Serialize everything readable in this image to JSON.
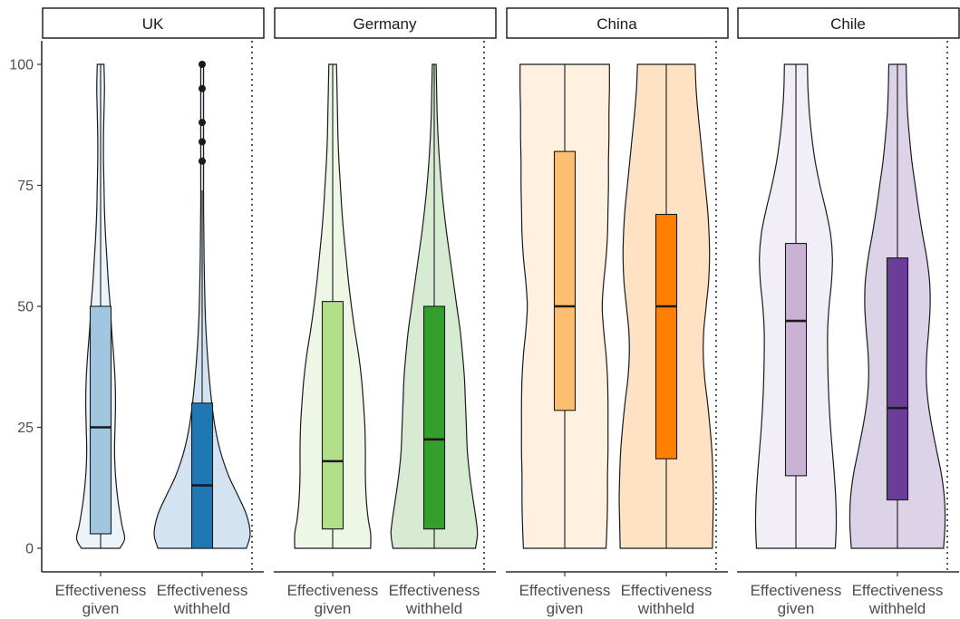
{
  "chart_data": {
    "type": "violin",
    "ylim": [
      0,
      100
    ],
    "yticks": [
      0,
      25,
      50,
      75,
      100
    ],
    "categories": [
      [
        "Effectiveness",
        "given"
      ],
      [
        "Effectiveness",
        "withheld"
      ]
    ],
    "panels": [
      {
        "name": "UK",
        "violins": [
          {
            "fill": "#ecf3f9",
            "box_fill": "#a1c6e0",
            "q1": 3,
            "median": 25,
            "q3": 50,
            "whisker_low": 0,
            "whisker_high": 100,
            "outliers": [],
            "profile": [
              [
                0,
                0.4
              ],
              [
                2,
                0.5
              ],
              [
                5,
                0.44
              ],
              [
                10,
                0.36
              ],
              [
                15,
                0.31
              ],
              [
                20,
                0.29
              ],
              [
                25,
                0.3
              ],
              [
                30,
                0.31
              ],
              [
                35,
                0.3
              ],
              [
                40,
                0.27
              ],
              [
                45,
                0.23
              ],
              [
                50,
                0.2
              ],
              [
                55,
                0.16
              ],
              [
                60,
                0.13
              ],
              [
                65,
                0.1
              ],
              [
                70,
                0.08
              ],
              [
                75,
                0.07
              ],
              [
                80,
                0.06
              ],
              [
                85,
                0.06
              ],
              [
                90,
                0.07
              ],
              [
                95,
                0.08
              ],
              [
                100,
                0.07
              ]
            ]
          },
          {
            "fill": "#d3e3f1",
            "box_fill": "#1f78b4",
            "q1": 0,
            "median": 13,
            "q3": 30,
            "whisker_low": 0,
            "whisker_high": 74,
            "outliers": [
              80,
              84,
              88,
              95,
              100
            ],
            "profile": [
              [
                0,
                0.92
              ],
              [
                3,
                1.0
              ],
              [
                7,
                0.92
              ],
              [
                11,
                0.74
              ],
              [
                15,
                0.55
              ],
              [
                20,
                0.38
              ],
              [
                25,
                0.27
              ],
              [
                30,
                0.2
              ],
              [
                35,
                0.15
              ],
              [
                40,
                0.11
              ],
              [
                45,
                0.08
              ],
              [
                50,
                0.06
              ],
              [
                60,
                0.04
              ],
              [
                70,
                0.03
              ],
              [
                80,
                0.03
              ],
              [
                90,
                0.03
              ],
              [
                100,
                0.03
              ]
            ]
          }
        ]
      },
      {
        "name": "Germany",
        "violins": [
          {
            "fill": "#eef7e6",
            "box_fill": "#b2df8a",
            "q1": 4,
            "median": 18,
            "q3": 51,
            "whisker_low": 0,
            "whisker_high": 100,
            "outliers": [],
            "profile": [
              [
                0,
                0.79
              ],
              [
                3,
                0.79
              ],
              [
                6,
                0.74
              ],
              [
                10,
                0.7
              ],
              [
                15,
                0.68
              ],
              [
                20,
                0.68
              ],
              [
                25,
                0.67
              ],
              [
                30,
                0.64
              ],
              [
                35,
                0.6
              ],
              [
                40,
                0.54
              ],
              [
                45,
                0.46
              ],
              [
                50,
                0.39
              ],
              [
                55,
                0.33
              ],
              [
                60,
                0.28
              ],
              [
                65,
                0.23
              ],
              [
                70,
                0.19
              ],
              [
                75,
                0.16
              ],
              [
                80,
                0.13
              ],
              [
                85,
                0.11
              ],
              [
                90,
                0.1
              ],
              [
                95,
                0.09
              ],
              [
                100,
                0.08
              ]
            ]
          },
          {
            "fill": "#d6ebd2",
            "box_fill": "#33a02c",
            "q1": 4,
            "median": 22.5,
            "q3": 50,
            "whisker_low": 0,
            "whisker_high": 100,
            "outliers": [],
            "profile": [
              [
                0,
                0.86
              ],
              [
                3,
                0.9
              ],
              [
                6,
                0.87
              ],
              [
                10,
                0.81
              ],
              [
                15,
                0.74
              ],
              [
                20,
                0.69
              ],
              [
                25,
                0.67
              ],
              [
                30,
                0.65
              ],
              [
                35,
                0.63
              ],
              [
                40,
                0.59
              ],
              [
                45,
                0.54
              ],
              [
                50,
                0.47
              ],
              [
                55,
                0.4
              ],
              [
                60,
                0.33
              ],
              [
                65,
                0.26
              ],
              [
                70,
                0.2
              ],
              [
                75,
                0.15
              ],
              [
                80,
                0.11
              ],
              [
                85,
                0.08
              ],
              [
                90,
                0.06
              ],
              [
                95,
                0.05
              ],
              [
                100,
                0.04
              ]
            ]
          }
        ]
      },
      {
        "name": "China",
        "violins": [
          {
            "fill": "#fff0e0",
            "box_fill": "#fdbf6f",
            "q1": 28.5,
            "median": 50,
            "q3": 82,
            "whisker_low": 0,
            "whisker_high": 100,
            "outliers": [],
            "profile": [
              [
                0,
                0.86
              ],
              [
                5,
                0.88
              ],
              [
                10,
                0.89
              ],
              [
                15,
                0.89
              ],
              [
                20,
                0.9
              ],
              [
                25,
                0.9
              ],
              [
                30,
                0.9
              ],
              [
                35,
                0.89
              ],
              [
                40,
                0.86
              ],
              [
                45,
                0.81
              ],
              [
                50,
                0.78
              ],
              [
                55,
                0.81
              ],
              [
                60,
                0.86
              ],
              [
                65,
                0.89
              ],
              [
                70,
                0.9
              ],
              [
                75,
                0.91
              ],
              [
                80,
                0.91
              ],
              [
                85,
                0.92
              ],
              [
                90,
                0.92
              ],
              [
                95,
                0.93
              ],
              [
                100,
                0.93
              ]
            ]
          },
          {
            "fill": "#ffe2c4",
            "box_fill": "#ff7f00",
            "q1": 18.5,
            "median": 50,
            "q3": 69,
            "whisker_low": 0,
            "whisker_high": 100,
            "outliers": [],
            "profile": [
              [
                0,
                0.96
              ],
              [
                5,
                0.97
              ],
              [
                10,
                0.98
              ],
              [
                15,
                0.97
              ],
              [
                20,
                0.95
              ],
              [
                25,
                0.91
              ],
              [
                30,
                0.86
              ],
              [
                35,
                0.8
              ],
              [
                40,
                0.77
              ],
              [
                45,
                0.78
              ],
              [
                50,
                0.83
              ],
              [
                55,
                0.88
              ],
              [
                60,
                0.9
              ],
              [
                65,
                0.89
              ],
              [
                70,
                0.86
              ],
              [
                75,
                0.81
              ],
              [
                80,
                0.76
              ],
              [
                85,
                0.71
              ],
              [
                90,
                0.66
              ],
              [
                95,
                0.62
              ],
              [
                100,
                0.6
              ]
            ]
          }
        ]
      },
      {
        "name": "Chile",
        "violins": [
          {
            "fill": "#f2eef7",
            "box_fill": "#cab2d6",
            "q1": 15,
            "median": 47,
            "q3": 63,
            "whisker_low": 0,
            "whisker_high": 100,
            "outliers": [],
            "profile": [
              [
                0,
                0.82
              ],
              [
                5,
                0.84
              ],
              [
                10,
                0.83
              ],
              [
                15,
                0.8
              ],
              [
                20,
                0.76
              ],
              [
                25,
                0.72
              ],
              [
                30,
                0.69
              ],
              [
                35,
                0.67
              ],
              [
                40,
                0.66
              ],
              [
                45,
                0.66
              ],
              [
                50,
                0.69
              ],
              [
                55,
                0.74
              ],
              [
                60,
                0.76
              ],
              [
                65,
                0.72
              ],
              [
                70,
                0.62
              ],
              [
                75,
                0.5
              ],
              [
                80,
                0.4
              ],
              [
                85,
                0.33
              ],
              [
                90,
                0.28
              ],
              [
                95,
                0.25
              ],
              [
                100,
                0.24
              ]
            ]
          },
          {
            "fill": "#ddd3e8",
            "box_fill": "#6a3d9a",
            "q1": 10,
            "median": 29,
            "q3": 60,
            "whisker_low": 0,
            "whisker_high": 100,
            "outliers": [],
            "profile": [
              [
                0,
                0.96
              ],
              [
                5,
                0.99
              ],
              [
                10,
                0.98
              ],
              [
                15,
                0.92
              ],
              [
                20,
                0.82
              ],
              [
                25,
                0.72
              ],
              [
                30,
                0.64
              ],
              [
                35,
                0.6
              ],
              [
                40,
                0.61
              ],
              [
                45,
                0.65
              ],
              [
                50,
                0.68
              ],
              [
                55,
                0.67
              ],
              [
                60,
                0.61
              ],
              [
                65,
                0.52
              ],
              [
                70,
                0.44
              ],
              [
                75,
                0.37
              ],
              [
                80,
                0.3
              ],
              [
                85,
                0.25
              ],
              [
                90,
                0.21
              ],
              [
                95,
                0.19
              ],
              [
                100,
                0.18
              ]
            ]
          }
        ]
      }
    ]
  }
}
